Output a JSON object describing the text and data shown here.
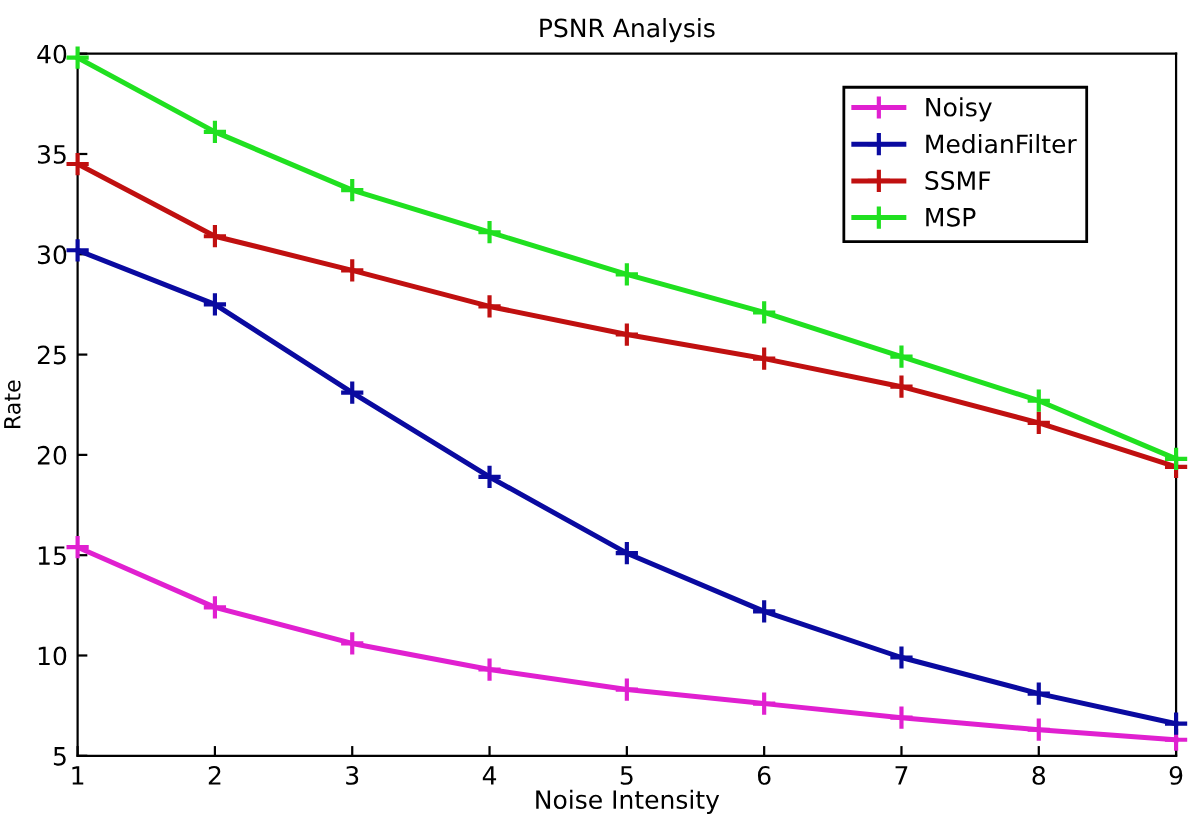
{
  "chart_data": {
    "type": "line",
    "title": "PSNR Analysis",
    "xlabel": "Noise Intensity",
    "ylabel": "Rate",
    "x": [
      1,
      2,
      3,
      4,
      5,
      6,
      7,
      8,
      9
    ],
    "series": [
      {
        "name": "Noisy",
        "color": "#e020d0",
        "values": [
          15.4,
          12.4,
          10.6,
          9.3,
          8.3,
          7.6,
          6.9,
          6.3,
          5.8
        ]
      },
      {
        "name": "MedianFilter",
        "color": "#0a0aa0",
        "values": [
          30.2,
          27.5,
          23.1,
          18.9,
          15.1,
          12.2,
          9.9,
          8.1,
          6.6
        ]
      },
      {
        "name": "SSMF",
        "color": "#c01010",
        "values": [
          34.5,
          30.9,
          29.2,
          27.4,
          26.0,
          24.8,
          23.4,
          21.6,
          19.4
        ]
      },
      {
        "name": "MSP",
        "color": "#20e020",
        "values": [
          39.8,
          36.1,
          33.2,
          31.1,
          29.0,
          27.1,
          24.9,
          22.7,
          19.8
        ]
      }
    ],
    "xlim": [
      1,
      9
    ],
    "xticks": [
      1,
      2,
      3,
      4,
      5,
      6,
      7,
      8,
      9
    ],
    "ylim": [
      5,
      40
    ],
    "yticks": [
      5,
      10,
      15,
      20,
      25,
      30,
      35,
      40
    ],
    "grid": false,
    "legend": "top right",
    "marker": "cross",
    "line_style": "solid"
  }
}
